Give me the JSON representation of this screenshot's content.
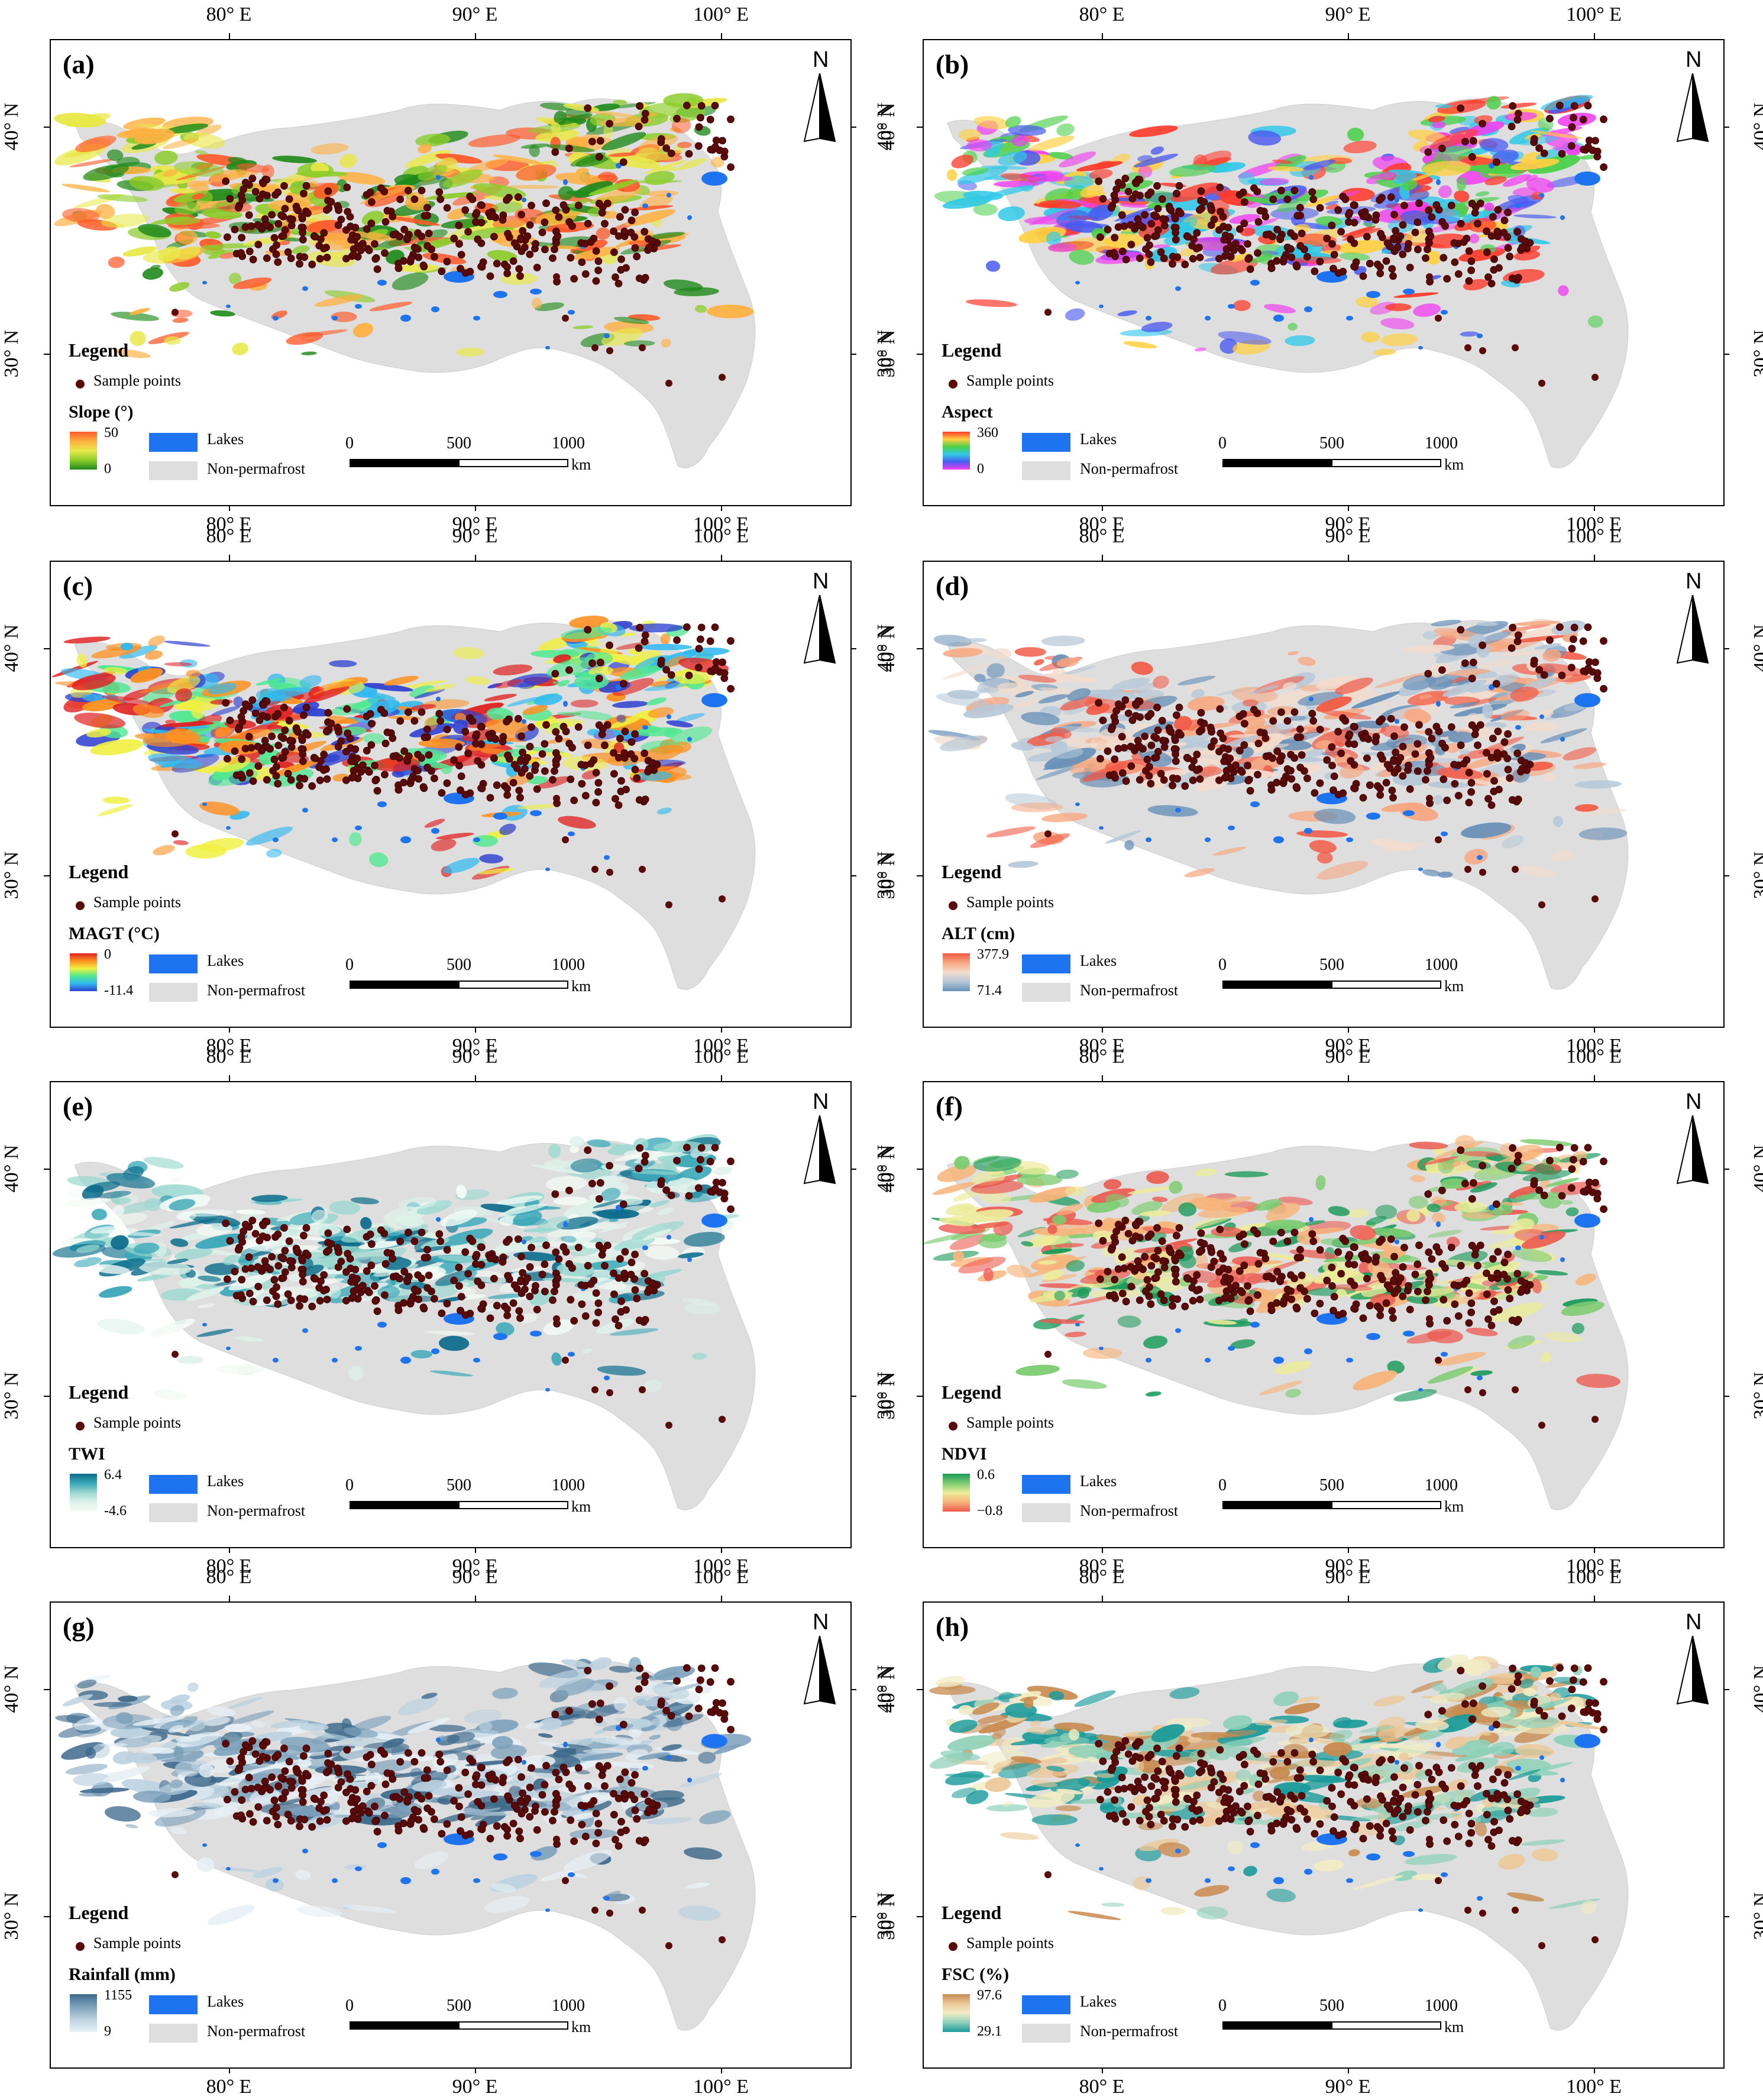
{
  "figure": {
    "common": {
      "lon_ticks": [
        "80° E",
        "90° E",
        "100° E"
      ],
      "lat_ticks": [
        "40° N",
        "30° N"
      ],
      "north_label": "N",
      "legend_title": "Legend",
      "sample_points_label": "Sample points",
      "lakes_label": "Lakes",
      "non_permafrost_label": "Non-permafrost",
      "scale_bar": {
        "labels": [
          "0",
          "500",
          "1000"
        ],
        "unit": "km"
      }
    },
    "colors": {
      "lakes": "#1e74f0",
      "non_permafrost": "#dedede",
      "sample_points": "#5b0a0a"
    },
    "panels": [
      {
        "id": "a",
        "label": "(a)",
        "variable": "Slope (°)",
        "max": "50",
        "min": "0",
        "colormap": [
          "#ff5a2a",
          "#ffb040",
          "#e8e84a",
          "#8ccc2a",
          "#1f8a1a"
        ]
      },
      {
        "id": "b",
        "label": "(b)",
        "variable": "Aspect",
        "max": "360",
        "min": "0",
        "colormap": [
          "#ff3a2a",
          "#ffd040",
          "#4ad04a",
          "#30c8e8",
          "#4a5af0",
          "#f040f0"
        ]
      },
      {
        "id": "c",
        "label": "(c)",
        "variable": "MAGT (°C)",
        "max": "0",
        "min": "-11.4",
        "colormap": [
          "#e02020",
          "#ff9020",
          "#f0f040",
          "#50e890",
          "#30b8f0",
          "#3040d0"
        ]
      },
      {
        "id": "d",
        "label": "(d)",
        "variable": "ALT (cm)",
        "max": "377.9",
        "min": "71.4",
        "colormap": [
          "#f25a44",
          "#f7a882",
          "#f3dccd",
          "#b6c8d8",
          "#6890b8"
        ]
      },
      {
        "id": "e",
        "label": "(e)",
        "variable": "TWI",
        "max": "6.4",
        "min": "-4.6",
        "colormap": [
          "#0c6d8c",
          "#3aa8b8",
          "#9ad8d0",
          "#def2ea",
          "#f4fbf6"
        ]
      },
      {
        "id": "f",
        "label": "(f)",
        "variable": "NDVI",
        "max": "0.6",
        "min": "−0.8",
        "colormap": [
          "#1a9a5a",
          "#7ccc70",
          "#ecec9a",
          "#f7b47a",
          "#ec5a50"
        ]
      },
      {
        "id": "g",
        "label": "(g)",
        "variable": "Rainfall (mm)",
        "max": "1155",
        "min": "9",
        "colormap": [
          "#3e6a8c",
          "#7ea2bc",
          "#bcd2e0",
          "#e6f0f6"
        ]
      },
      {
        "id": "h",
        "label": "(h)",
        "variable": "FSC (%)",
        "max": "97.6",
        "min": "29.1",
        "colormap": [
          "#c88a4e",
          "#ecc898",
          "#f2ecc4",
          "#8cd0b8",
          "#1a9a9a"
        ]
      }
    ]
  }
}
